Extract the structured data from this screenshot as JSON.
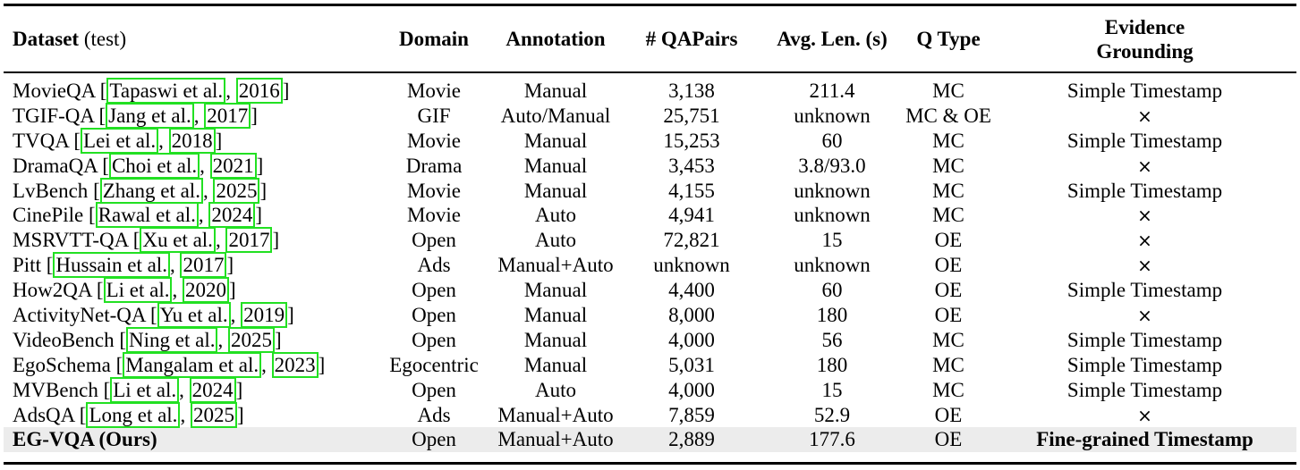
{
  "headers": {
    "dataset": "Dataset",
    "dataset_suffix": "(test)",
    "domain": "Domain",
    "annotation": "Annotation",
    "qa_pairs": "# QAPairs",
    "avg_len": "Avg. Len. (s)",
    "q_type": "Q Type",
    "evidence_line1": "Evidence",
    "evidence_line2": "Grounding"
  },
  "rows": [
    {
      "name": "MovieQA",
      "authors": "Tapaswi et al.",
      "year": "2016",
      "domain": "Movie",
      "annotation": "Manual",
      "qa_pairs": "3,138",
      "avg_len": "211.4",
      "q_type": "MC",
      "evidence": "Simple Timestamp"
    },
    {
      "name": "TGIF-QA",
      "authors": "Jang et al.",
      "year": "2017",
      "domain": "GIF",
      "annotation": "Auto/Manual",
      "qa_pairs": "25,751",
      "avg_len": "unknown",
      "q_type": "MC & OE",
      "evidence": "×"
    },
    {
      "name": "TVQA",
      "authors": "Lei et al.",
      "year": "2018",
      "domain": "Movie",
      "annotation": "Manual",
      "qa_pairs": "15,253",
      "avg_len": "60",
      "q_type": "MC",
      "evidence": "Simple Timestamp"
    },
    {
      "name": "DramaQA",
      "authors": "Choi et al.",
      "year": "2021",
      "domain": "Drama",
      "annotation": "Manual",
      "qa_pairs": "3,453",
      "avg_len": "3.8/93.0",
      "q_type": "MC",
      "evidence": "×"
    },
    {
      "name": "LvBench",
      "authors": "Zhang et al.",
      "year": "2025",
      "domain": "Movie",
      "annotation": "Manual",
      "qa_pairs": "4,155",
      "avg_len": "unknown",
      "q_type": "MC",
      "evidence": "Simple Timestamp"
    },
    {
      "name": "CinePile",
      "authors": "Rawal et al.",
      "year": "2024",
      "domain": "Movie",
      "annotation": "Auto",
      "qa_pairs": "4,941",
      "avg_len": "unknown",
      "q_type": "MC",
      "evidence": "×"
    },
    {
      "name": "MSRVTT-QA",
      "authors": "Xu et al.",
      "year": "2017",
      "domain": "Open",
      "annotation": "Auto",
      "qa_pairs": "72,821",
      "avg_len": "15",
      "q_type": "OE",
      "evidence": "×"
    },
    {
      "name": "Pitt",
      "authors": "Hussain et al.",
      "year": "2017",
      "domain": "Ads",
      "annotation": "Manual+Auto",
      "qa_pairs": "unknown",
      "avg_len": "unknown",
      "q_type": "OE",
      "evidence": "×"
    },
    {
      "name": "How2QA",
      "authors": "Li et al.",
      "year": "2020",
      "domain": "Open",
      "annotation": "Manual",
      "qa_pairs": "4,400",
      "avg_len": "60",
      "q_type": "OE",
      "evidence": "Simple Timestamp"
    },
    {
      "name": "ActivityNet-QA",
      "authors": "Yu et al.",
      "year": "2019",
      "domain": "Open",
      "annotation": "Manual",
      "qa_pairs": "8,000",
      "avg_len": "180",
      "q_type": "OE",
      "evidence": "×"
    },
    {
      "name": "VideoBench",
      "authors": "Ning et al.",
      "year": "2025",
      "domain": "Open",
      "annotation": "Manual",
      "qa_pairs": "4,000",
      "avg_len": "56",
      "q_type": "MC",
      "evidence": "Simple Timestamp"
    },
    {
      "name": "EgoSchema",
      "authors": "Mangalam et al.",
      "year": "2023",
      "domain": "Egocentric",
      "annotation": "Manual",
      "qa_pairs": "5,031",
      "avg_len": "180",
      "q_type": "MC",
      "evidence": "Simple Timestamp"
    },
    {
      "name": "MVBench",
      "authors": "Li et al.",
      "year": "2024",
      "domain": "Open",
      "annotation": "Auto",
      "qa_pairs": "4,000",
      "avg_len": "15",
      "q_type": "MC",
      "evidence": "Simple Timestamp"
    },
    {
      "name": "AdsQA",
      "authors": "Long et al.",
      "year": "2025",
      "domain": "Ads",
      "annotation": "Manual+Auto",
      "qa_pairs": "7,859",
      "avg_len": "52.9",
      "q_type": "OE",
      "evidence": "×"
    }
  ],
  "ours": {
    "name": "EG-VQA (Ours)",
    "domain": "Open",
    "annotation": "Manual+Auto",
    "qa_pairs": "2,889",
    "avg_len": "177.6",
    "q_type": "OE",
    "evidence": "Fine-grained Timestamp"
  },
  "colors": {
    "citation_box": "#22e022",
    "ours_highlight": "#ececec"
  }
}
